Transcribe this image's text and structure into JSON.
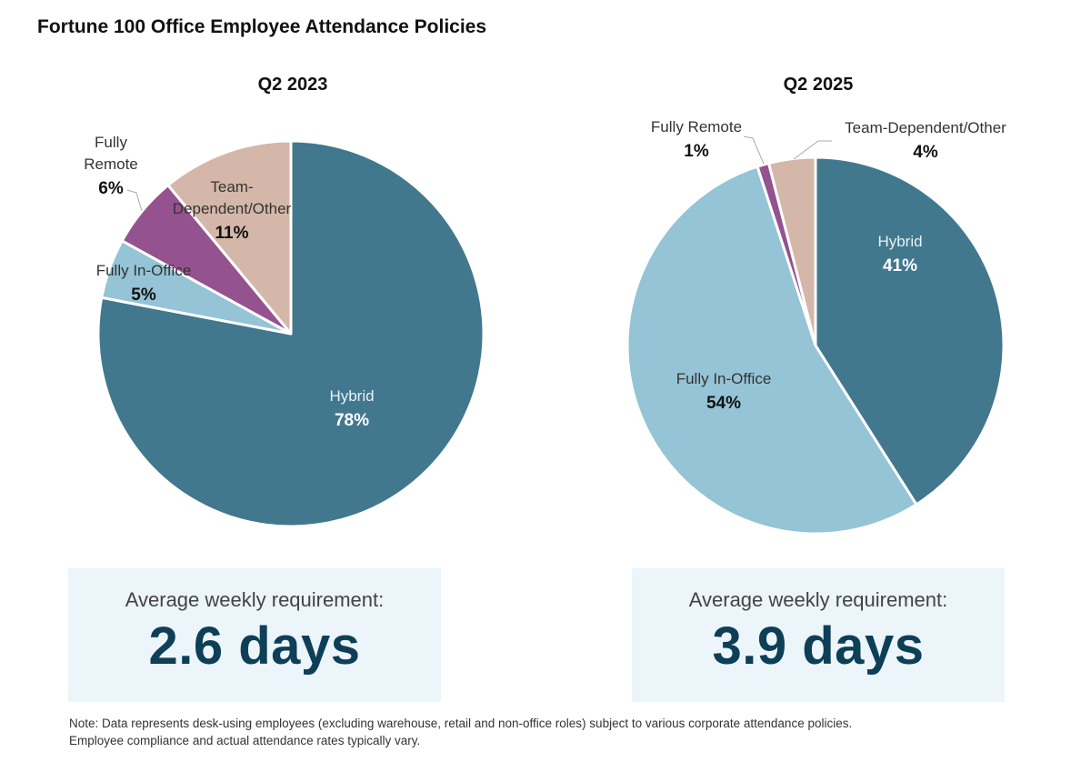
{
  "title": "Fortune 100 Office Employee Attendance Policies",
  "colors": {
    "hybrid": "#41788e",
    "fully_in_office": "#94c4d5",
    "fully_remote": "#94528e",
    "team_dependent_other": "#d4b7a8",
    "summary_value": "#0d3f57",
    "summary_bg": "#ecf5f9"
  },
  "chart_data": [
    {
      "type": "pie",
      "title": "Q2 2023",
      "slices": [
        {
          "key": "hybrid",
          "label": "Hybrid",
          "value": 78,
          "value_label": "78%"
        },
        {
          "key": "fully_in_office",
          "label": "Fully In-Office",
          "value": 5,
          "value_label": "5%"
        },
        {
          "key": "fully_remote",
          "label": "Fully Remote",
          "value": 6,
          "value_label": "6%"
        },
        {
          "key": "team_dependent_other",
          "label": "Team-Dependent/Other",
          "value": 11,
          "value_label": "11%"
        }
      ]
    },
    {
      "type": "pie",
      "title": "Q2 2025",
      "slices": [
        {
          "key": "hybrid",
          "label": "Hybrid",
          "value": 41,
          "value_label": "41%"
        },
        {
          "key": "fully_in_office",
          "label": "Fully In-Office",
          "value": 54,
          "value_label": "54%"
        },
        {
          "key": "fully_remote",
          "label": "Fully Remote",
          "value": 1,
          "value_label": "1%"
        },
        {
          "key": "team_dependent_other",
          "label": "Team-Dependent/Other",
          "value": 4,
          "value_label": "4%"
        }
      ]
    }
  ],
  "summaries": [
    {
      "label": "Average weekly requirement:",
      "value": "2.6 days"
    },
    {
      "label": "Average weekly requirement:",
      "value": "3.9 days"
    }
  ],
  "note": {
    "line1": "Note: Data represents desk-using employees (excluding warehouse, retail and non-office roles) subject to various corporate attendance policies.",
    "line2": "Employee compliance and actual attendance rates typically vary."
  }
}
